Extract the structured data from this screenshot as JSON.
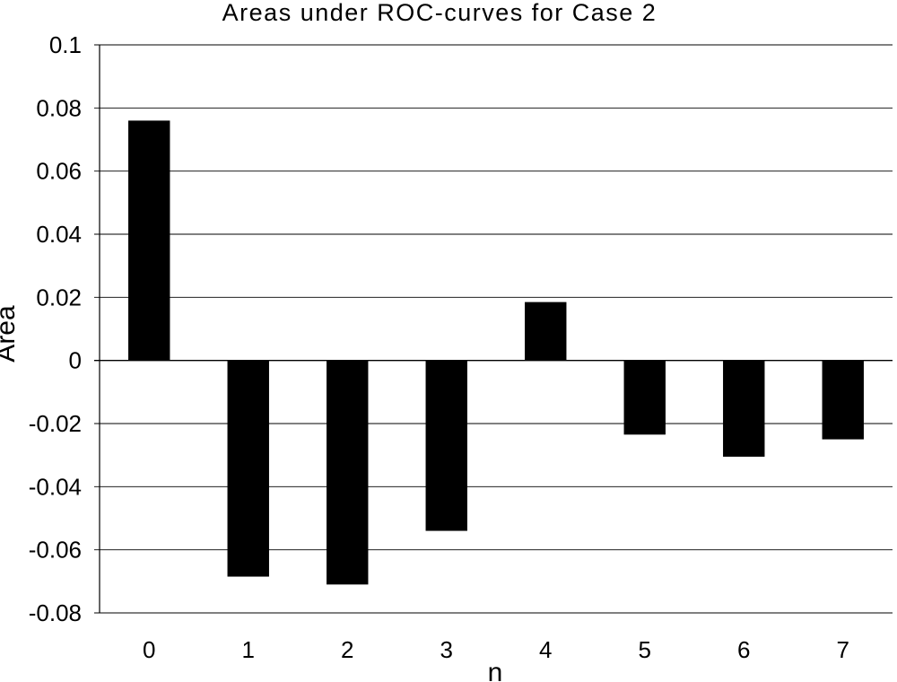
{
  "chart_data": {
    "type": "bar",
    "title": "Areas under ROC-curves for Case 2",
    "xlabel": "n",
    "ylabel": "Area",
    "categories": [
      "0",
      "1",
      "2",
      "3",
      "4",
      "5",
      "6",
      "7"
    ],
    "values": [
      0.076,
      -0.0685,
      -0.071,
      -0.054,
      0.0185,
      -0.0235,
      -0.0305,
      -0.025
    ],
    "ylim": [
      -0.08,
      0.1
    ],
    "yticks": [
      0.1,
      0.08,
      0.06,
      0.04,
      0.02,
      0,
      -0.02,
      -0.04,
      -0.06,
      -0.08
    ],
    "ytick_labels": [
      "0.1",
      "0.08",
      "0.06",
      "0.04",
      "0.02",
      "0",
      "-0.02",
      "-0.04",
      "-0.06",
      "-0.08"
    ],
    "grid": "horizontal",
    "bar_color": "#000000",
    "grid_color": "#000000"
  }
}
